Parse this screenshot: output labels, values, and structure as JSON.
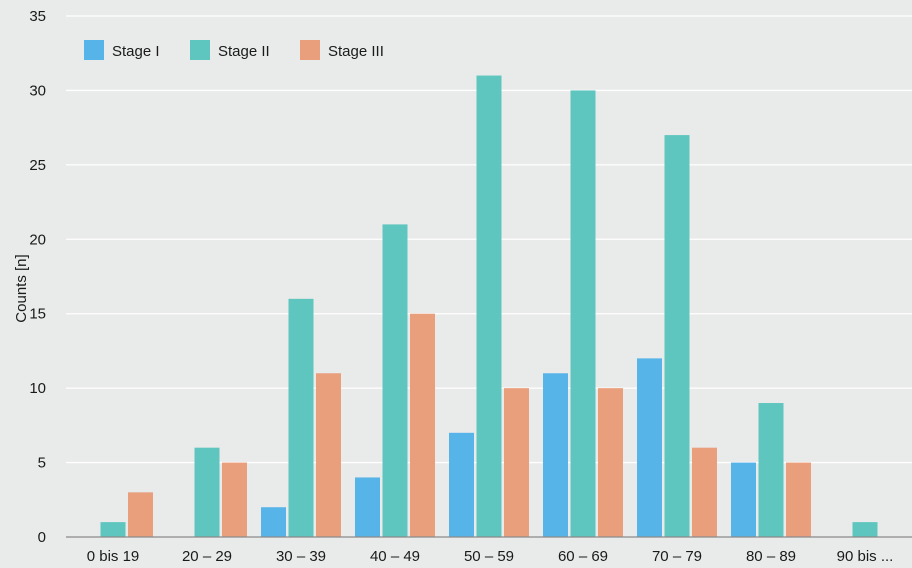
{
  "chart_data": {
    "type": "bar",
    "title": "",
    "xlabel": "",
    "ylabel": "Counts [n]",
    "ylim": [
      0,
      35
    ],
    "yticks": [
      0,
      5,
      10,
      15,
      20,
      25,
      30,
      35
    ],
    "grid": true,
    "legend_position": "top-left",
    "categories": [
      "0 bis 19",
      "20 – 29",
      "30 – 39",
      "40 – 49",
      "50 – 59",
      "60 – 69",
      "70 – 79",
      "80 – 89",
      "90 bis ..."
    ],
    "series": [
      {
        "name": "Stage I",
        "color": "#56b4e9",
        "values": [
          0,
          0,
          2,
          4,
          7,
          11,
          12,
          5,
          0
        ]
      },
      {
        "name": "Stage II",
        "color": "#5fc6bf",
        "values": [
          1,
          6,
          16,
          21,
          31,
          30,
          27,
          9,
          1
        ]
      },
      {
        "name": "Stage III",
        "color": "#e99e7c",
        "values": [
          3,
          5,
          11,
          15,
          10,
          10,
          6,
          5,
          0
        ]
      }
    ]
  }
}
